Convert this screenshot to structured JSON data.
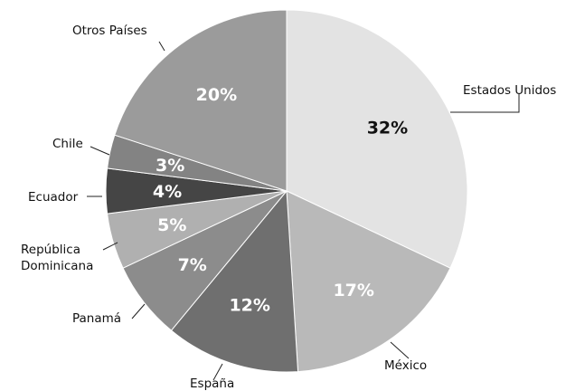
{
  "chart_data": {
    "type": "pie",
    "slices": [
      {
        "label": "Estados Unidos",
        "value": 32,
        "value_label": "32%",
        "color": "#e3e3e3",
        "label_color": "#111111"
      },
      {
        "label": "México",
        "value": 17,
        "value_label": "17%",
        "color": "#b9b9b9",
        "label_color": "#ffffff"
      },
      {
        "label": "España",
        "value": 12,
        "value_label": "12%",
        "color": "#6f6f6f",
        "label_color": "#ffffff"
      },
      {
        "label": "Panamá",
        "value": 7,
        "value_label": "7%",
        "color": "#8c8c8c",
        "label_color": "#ffffff"
      },
      {
        "label": "República Dominicana",
        "label_lines": [
          "República",
          "Dominicana"
        ],
        "value": 5,
        "value_label": "5%",
        "color": "#b0b0b0",
        "label_color": "#ffffff"
      },
      {
        "label": "Ecuador",
        "value": 4,
        "value_label": "4%",
        "color": "#454545",
        "label_color": "#ffffff"
      },
      {
        "label": "Chile",
        "value": 3,
        "value_label": "3%",
        "color": "#838383",
        "label_color": "#ffffff"
      },
      {
        "label": "Otros Países",
        "value": 20,
        "value_label": "20%",
        "color": "#9b9b9b",
        "label_color": "#ffffff"
      }
    ]
  }
}
